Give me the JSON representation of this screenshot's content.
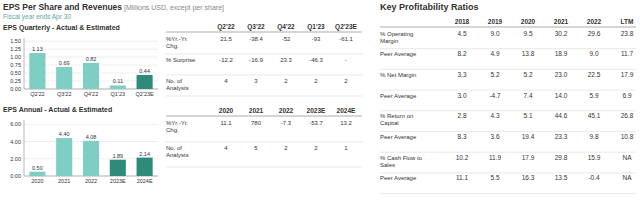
{
  "title": "EPS Per Share and Revenues",
  "subtitle": " [Millions USD, except per share]",
  "annotations": [
    "Fiscal year ends Apr 30"
  ],
  "chart_data": [
    {
      "type": "bar",
      "title": "EPS Quarterly - Actual & Estimated",
      "categories": [
        "Q2'22",
        "Q3'22",
        "Q4'22",
        "Q1'23",
        "Q2'23E"
      ],
      "values": [
        1.13,
        0.69,
        0.82,
        0.11,
        0.44
      ],
      "colors": [
        "#7ecec4",
        "#7ecec4",
        "#7ecec4",
        "#7ecec4",
        "#2e8b7a"
      ],
      "ylim": [
        0,
        1.6
      ],
      "yticks": [
        {
          "value": 0,
          "label": "0.00"
        },
        0.25,
        {
          "value": 0.5,
          "label": "0.50"
        },
        0.75,
        {
          "value": 1,
          "label": "1.00"
        },
        1.25,
        {
          "value": 1.5,
          "label": "1.50"
        }
      ],
      "grid": true,
      "data_labels": true
    },
    {
      "type": "bar",
      "title": "EPS Annual - Actual & Estimated",
      "categories": [
        "2020",
        "2021",
        "2022",
        "2023E",
        "2024E"
      ],
      "values": [
        0.5,
        4.4,
        4.08,
        1.89,
        2.14
      ],
      "value_labels": [
        "0.50",
        "4.40",
        "4.08",
        "1.89",
        "2.14"
      ],
      "colors": [
        "#7ecec4",
        "#7ecec4",
        "#7ecec4",
        "#2e8b7a",
        "#2e8b7a"
      ],
      "ylim": [
        0,
        6.5
      ],
      "yticks": [
        {
          "value": 0,
          "label": "0.00"
        },
        {
          "value": 2,
          "label": "2.00"
        },
        {
          "value": 4,
          "label": "4.00"
        },
        {
          "value": 6,
          "label": "6.00"
        }
      ],
      "grid": true,
      "data_labels": true
    },
    {
      "type": "table",
      "columns": [
        "Q2'22",
        "Q3'22",
        "Q4'22",
        "Q1'23",
        "Q2'23E"
      ],
      "row_labels": [
        "%Yr.-Yr.\nChg.",
        "% Surprise",
        "No. of\nAnalysts"
      ],
      "cells": [
        [
          "21.5",
          "-38.4",
          "-52",
          "-93",
          "-61.1"
        ],
        [
          "-12.2",
          "-16.9",
          "23.3",
          "-46.3",
          "-"
        ],
        [
          "4",
          "3",
          "2",
          "2",
          "2"
        ]
      ]
    },
    {
      "type": "table",
      "columns": [
        "2020",
        "2021",
        "2022",
        "2023E",
        "2024E"
      ],
      "row_labels": [
        "%Yr.-Yr.\nChg.",
        "No. of\nAnalysts"
      ],
      "cells": [
        [
          "11.1",
          "780",
          "-7.3",
          "-53.7",
          "13.2"
        ],
        [
          "4",
          "5",
          "2",
          "2",
          "1"
        ]
      ]
    },
    {
      "type": "table",
      "title": "Key Profitability Ratios",
      "columns": [
        "2018",
        "2019",
        "2020",
        "2021",
        "2022",
        "LTM"
      ],
      "row_labels": [
        "% Operating\nMargin",
        "Peer Average",
        "% Net Margin",
        "Peer Average",
        "% Return on\nCapital",
        "Peer Average",
        "% Cash Flow to\nSales",
        "Peer Average"
      ],
      "cells": [
        [
          "4.5",
          "9.0",
          "9.5",
          "30.2",
          "29.6",
          "23.8"
        ],
        [
          "8.2",
          "4.9",
          "13.8",
          "18.9",
          "9.0",
          "11.7"
        ],
        [
          "3.3",
          "5.2",
          "5.2",
          "23.0",
          "22.5",
          "17.9"
        ],
        [
          "3.0",
          "-4.7",
          "7.4",
          "14.0",
          "5.9",
          "6.9"
        ],
        [
          "2.8",
          "4.3",
          "5.1",
          "44.6",
          "45.1",
          "26.8"
        ],
        [
          "8.3",
          "3.6",
          "19.4",
          "23.3",
          "9.8",
          "10.8"
        ],
        [
          "10.2",
          "11.9",
          "17.9",
          "29.8",
          "15.9",
          "NA"
        ],
        [
          "11.1",
          "5.5",
          "16.3",
          "13.5",
          "-0.4",
          "NA"
        ]
      ]
    }
  ]
}
